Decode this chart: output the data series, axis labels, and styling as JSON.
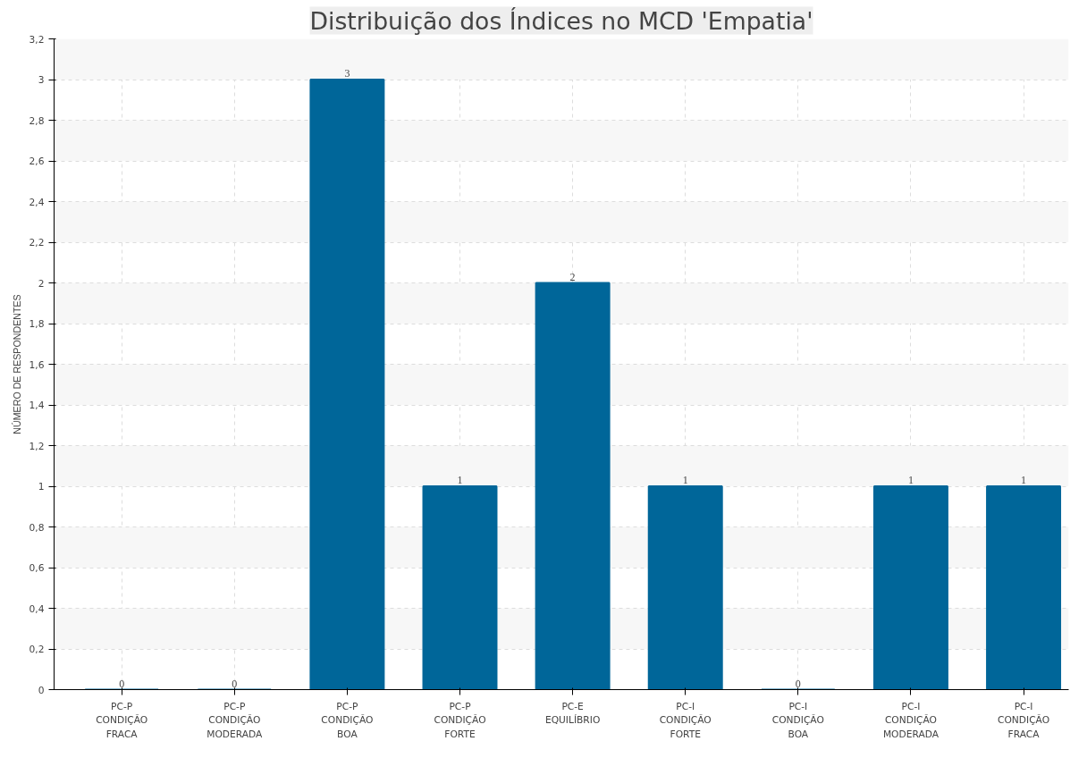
{
  "chart_data": {
    "type": "bar",
    "title": "Distribuição dos Índices no MCD 'Empatia'",
    "ylabel": "NÚMERO DE RESPONDENTES",
    "categories": [
      "PC-P\nCONDIÇÃO\nFRACA",
      "PC-P\nCONDIÇÃO\nMODERADA",
      "PC-P\nCONDIÇÃO\nBOA",
      "PC-P\nCONDIÇÃO\nFORTE",
      "PC-E\nEQUILÍBRIO",
      "PC-I\nCONDIÇÃO\nFORTE",
      "PC-I\nCONDIÇÃO\nBOA",
      "PC-I\nCONDIÇÃO\nMODERADA",
      "PC-I\nCONDIÇÃO\nFRACA"
    ],
    "values": [
      0,
      0,
      3,
      1,
      2,
      1,
      0,
      1,
      1
    ],
    "color": "#006699",
    "ylim": [
      0,
      3.2
    ],
    "yticks": [
      0,
      {
        "value": 0.2,
        "label": "0,2"
      },
      {
        "value": 0.4,
        "label": "0,4"
      },
      {
        "value": 0.6,
        "label": "0,6"
      },
      {
        "value": 0.8,
        "label": "0,8"
      },
      1,
      {
        "value": 1.2,
        "label": "1,2"
      },
      {
        "value": 1.4,
        "label": "1,4"
      },
      {
        "value": 1.6,
        "label": "1,6"
      },
      {
        "value": 1.8,
        "label": "1,8"
      },
      2,
      {
        "value": 2.2,
        "label": "2,2"
      },
      {
        "value": 2.4,
        "label": "2,4"
      },
      {
        "value": 2.6,
        "label": "2,6"
      },
      {
        "value": 2.8,
        "label": "2,8"
      },
      3,
      {
        "value": 3.2,
        "label": "3,2"
      }
    ],
    "grid": true,
    "data_labels": true
  }
}
